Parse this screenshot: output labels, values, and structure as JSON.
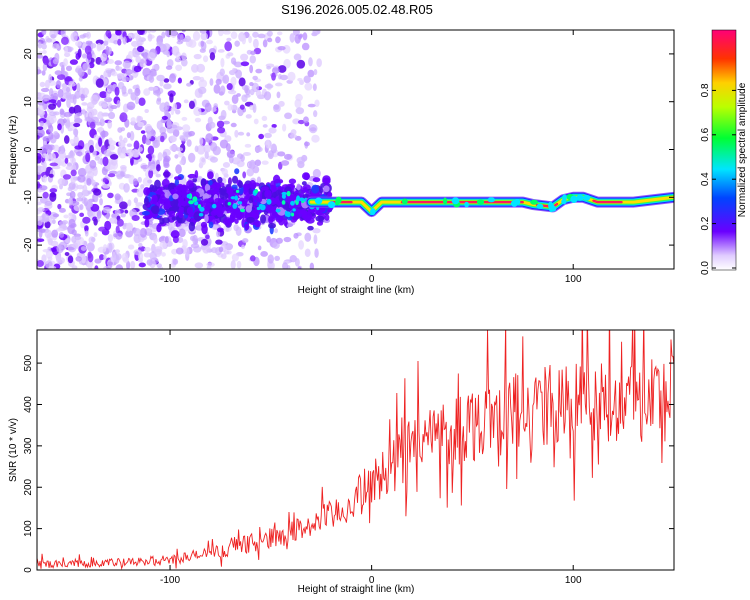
{
  "title": "S196.2026.005.02.48.R05",
  "chart_data": [
    {
      "type": "heatmap",
      "xlabel": "Height of straight line (km)",
      "ylabel": "Frequency (Hz)",
      "xlim": [
        -166,
        150
      ],
      "ylim": [
        -25,
        25
      ],
      "xticks": [
        -100,
        0,
        100
      ],
      "yticks": [
        -20,
        -10,
        0,
        10,
        20
      ],
      "colorbar": {
        "label": "Normalized spectral amplitude",
        "range": [
          0,
          1
        ],
        "ticks": [
          "0.0",
          "0.2",
          "0.4",
          "0.6",
          "0.8"
        ],
        "colormap": "rainbow"
      },
      "ridge": [
        {
          "x": -30,
          "y": -11
        },
        {
          "x": -20,
          "y": -11
        },
        {
          "x": -10,
          "y": -11
        },
        {
          "x": -5,
          "y": -11
        },
        {
          "x": 0,
          "y": -13
        },
        {
          "x": 5,
          "y": -11
        },
        {
          "x": 20,
          "y": -11
        },
        {
          "x": 50,
          "y": -11
        },
        {
          "x": 75,
          "y": -11
        },
        {
          "x": 80,
          "y": -11.5
        },
        {
          "x": 90,
          "y": -12
        },
        {
          "x": 95,
          "y": -10.5
        },
        {
          "x": 100,
          "y": -10
        },
        {
          "x": 105,
          "y": -10
        },
        {
          "x": 112,
          "y": -11
        },
        {
          "x": 130,
          "y": -11
        },
        {
          "x": 150,
          "y": -10
        }
      ]
    },
    {
      "type": "line",
      "xlabel": "Height of straight line (km)",
      "ylabel": "SNR (10 * v/v)",
      "xlim": [
        -166,
        150
      ],
      "ylim": [
        0,
        580
      ],
      "xticks": [
        -100,
        0,
        100
      ],
      "yticks": [
        0,
        100,
        200,
        300,
        400,
        500
      ],
      "color": "#ee2222",
      "trend": [
        {
          "x": -166,
          "y": 15
        },
        {
          "x": -120,
          "y": 18
        },
        {
          "x": -100,
          "y": 25
        },
        {
          "x": -80,
          "y": 40
        },
        {
          "x": -60,
          "y": 65
        },
        {
          "x": -40,
          "y": 90
        },
        {
          "x": -20,
          "y": 130
        },
        {
          "x": -10,
          "y": 160
        },
        {
          "x": 0,
          "y": 210
        },
        {
          "x": 10,
          "y": 250
        },
        {
          "x": 20,
          "y": 300
        },
        {
          "x": 40,
          "y": 340
        },
        {
          "x": 60,
          "y": 370
        },
        {
          "x": 80,
          "y": 390
        },
        {
          "x": 100,
          "y": 400
        },
        {
          "x": 120,
          "y": 410
        },
        {
          "x": 150,
          "y": 420
        }
      ]
    }
  ]
}
